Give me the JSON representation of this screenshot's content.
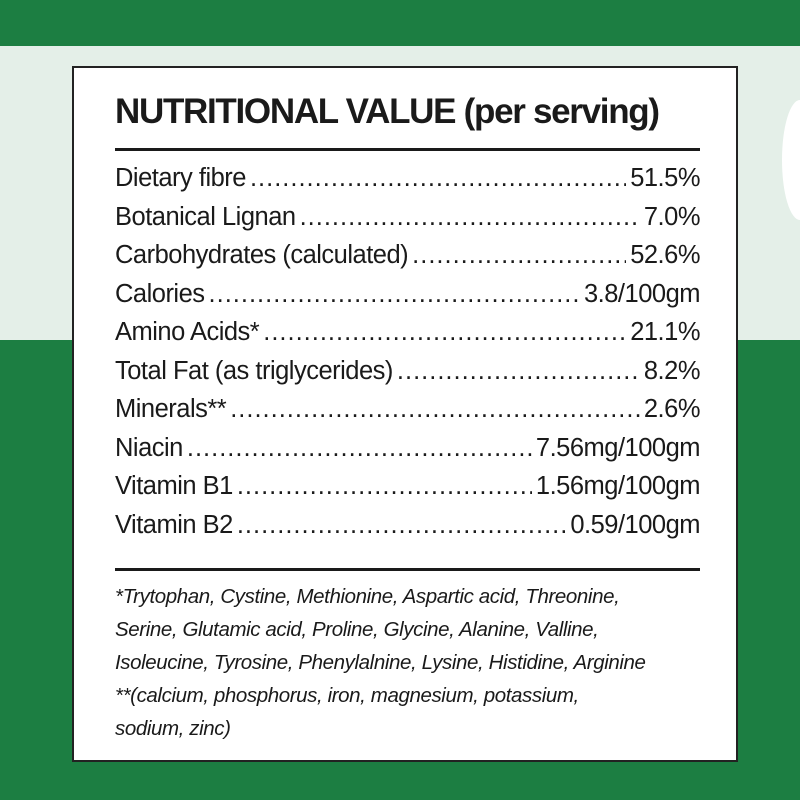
{
  "colors": {
    "green": "#1c7e42",
    "light": "#e4efe8"
  },
  "title": "NUTRITIONAL VALUE (per serving)",
  "rows": [
    {
      "label": "Dietary fibre",
      "value": "51.5%"
    },
    {
      "label": "Botanical Lignan",
      "value": "7.0%"
    },
    {
      "label": "Carbohydrates (calculated)",
      "value": "52.6%"
    },
    {
      "label": "Calories",
      "value": "3.8/100gm"
    },
    {
      "label": "Amino Acids*",
      "value": "21.1%"
    },
    {
      "label": "Total Fat (as triglycerides)",
      "value": "8.2%"
    },
    {
      "label": "Minerals**",
      "value": "2.6%"
    },
    {
      "label": "Niacin",
      "value": "7.56mg/100gm"
    },
    {
      "label": "Vitamin B1",
      "value": "1.56mg/100gm"
    },
    {
      "label": "Vitamin B2",
      "value": "0.59/100gm"
    }
  ],
  "footnotes": [
    "*Trytophan, Cystine, Methionine, Aspartic acid, Threonine,",
    "Serine, Glutamic acid, Proline, Glycine, Alanine, Valline,",
    "Isoleucine, Tyrosine, Phenylalnine, Lysine, Histidine, Arginine",
    "**(calcium, phosphorus, iron, magnesium, potassium,",
    "sodium, zinc)"
  ]
}
